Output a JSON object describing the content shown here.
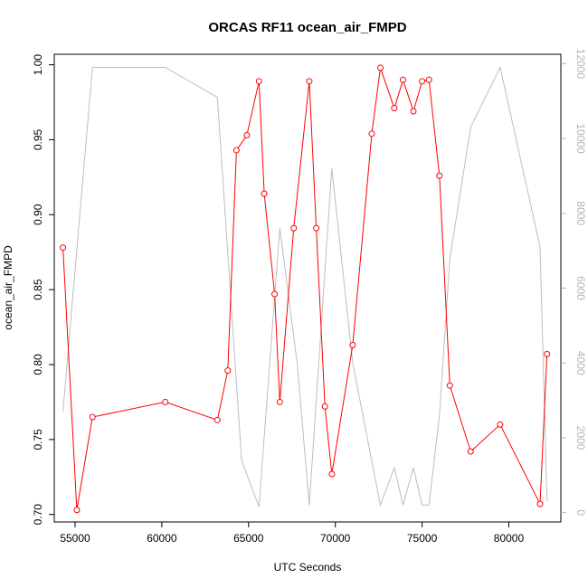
{
  "chart_data": {
    "type": "line",
    "title": "ORCAS RF11 ocean_air_FMPD",
    "xlabel": "UTC Seconds",
    "ylabel": "ocean_air_FMPD",
    "xlim": [
      53800,
      83000
    ],
    "ylim": [
      0.695,
      1.007
    ],
    "y2lim": [
      -250,
      12250
    ],
    "x_ticks": [
      55000,
      60000,
      65000,
      70000,
      75000,
      80000
    ],
    "y_ticks": [
      0.7,
      0.75,
      0.8,
      0.85,
      0.9,
      0.95,
      1.0
    ],
    "y_tick_labels": [
      "0.70",
      "0.75",
      "0.80",
      "0.85",
      "0.90",
      "0.95",
      "1.00"
    ],
    "y2_ticks": [
      0,
      2000,
      4000,
      6000,
      8000,
      10000,
      12000
    ],
    "series": [
      {
        "color": "#ff0000",
        "axis": "left",
        "markers": true,
        "x": [
          54300,
          55100,
          56000,
          60200,
          63200,
          63800,
          64300,
          64900,
          65600,
          65900,
          66500,
          66800,
          67600,
          68500,
          68900,
          69400,
          69800,
          71000,
          72100,
          72600,
          73400,
          73900,
          74500,
          75000,
          75400,
          76000,
          76600,
          77800,
          79500,
          81800,
          82200
        ],
        "values": [
          0.878,
          0.703,
          0.765,
          0.775,
          0.763,
          0.796,
          0.943,
          0.953,
          0.989,
          0.914,
          0.847,
          0.775,
          0.891,
          0.989,
          0.891,
          0.772,
          0.727,
          0.813,
          0.954,
          0.998,
          0.971,
          0.99,
          0.969,
          0.989,
          0.99,
          0.926,
          0.786,
          0.742,
          0.76,
          0.707,
          0.807
        ]
      },
      {
        "color": "#bebebe",
        "axis": "right",
        "markers": false,
        "x": [
          54300,
          56000,
          60200,
          63200,
          64600,
          65600,
          66800,
          67800,
          68500,
          69800,
          71000,
          72600,
          73400,
          73900,
          74500,
          75000,
          75400,
          76000,
          76600,
          77800,
          79500,
          81800,
          82200
        ],
        "values": [
          2700,
          11900,
          11900,
          11100,
          1400,
          150,
          7600,
          4000,
          200,
          9200,
          4000,
          200,
          1200,
          200,
          1200,
          200,
          200,
          2600,
          6800,
          10300,
          11900,
          7100,
          300
        ]
      }
    ]
  }
}
